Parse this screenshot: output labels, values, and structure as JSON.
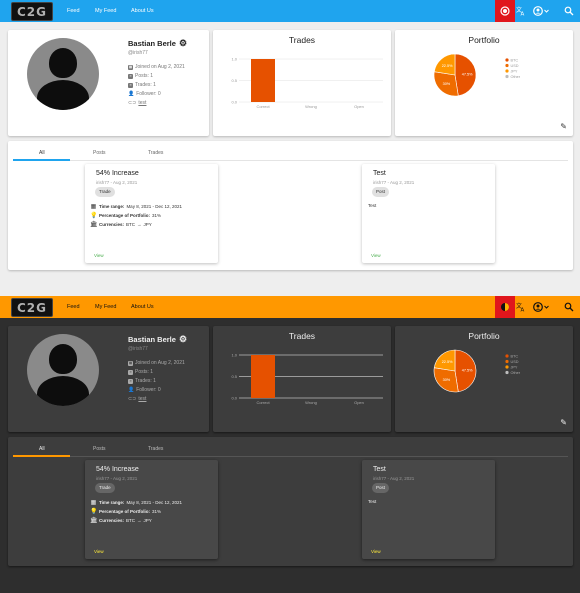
{
  "app": {
    "logo_text": "C2G",
    "nav": [
      "Feed",
      "My Feed",
      "About Us"
    ],
    "accent_light": "#1fa4ee",
    "accent_dark": "#ff9800",
    "highlight": "#e0161c"
  },
  "icons": [
    "theme-toggle-icon",
    "translate-icon",
    "account-icon",
    "chevron-down-icon",
    "search-icon"
  ],
  "profile": {
    "name": "Bastian Berle",
    "handle": "@irish77",
    "joined": "Joined on Aug 2, 2021",
    "posts": "Posts: 1",
    "trades": "Trades: 1",
    "followers": "Follower: 0",
    "link": "test"
  },
  "trades_card": {
    "title": "Trades"
  },
  "portfolio_card": {
    "title": "Portfolio"
  },
  "chart_data": [
    {
      "type": "bar",
      "title": "Trades",
      "categories": [
        "Correct",
        "Wrong",
        "Open"
      ],
      "values": [
        1,
        0,
        0
      ],
      "ylim": [
        0,
        1
      ],
      "yticks": [
        "1.0",
        "0.5",
        "0.0"
      ],
      "color": "#e65100"
    },
    {
      "type": "pie",
      "title": "Portfolio",
      "labels": [
        "BTC",
        "USD",
        "JPY",
        "Other"
      ],
      "values": [
        47.5,
        30,
        22.5,
        0
      ],
      "display_labels": [
        "47.5%",
        "30%",
        "22.5%",
        ""
      ],
      "colors": [
        "#e65100",
        "#ef6c00",
        "#ff9800",
        "#bdbdbd"
      ]
    }
  ],
  "tabs": [
    "All",
    "Posts",
    "Trades"
  ],
  "posts": [
    {
      "title": "54% Increase",
      "meta": "irish77 - Aug 2, 2021",
      "chip": "Trade",
      "time_label": "Time range:",
      "time_value": "May 8, 2021 - Dec 12, 2021",
      "pct_label": "Percentage of Portfolio:",
      "pct_value": "31%",
      "cur_label": "Currencies:",
      "cur_from": "BTC",
      "cur_to": "JPY",
      "view": "View"
    },
    {
      "title": "Test",
      "meta": "irish77 - Aug 2, 2021",
      "chip": "Post",
      "text": "Test",
      "view": "View"
    }
  ]
}
